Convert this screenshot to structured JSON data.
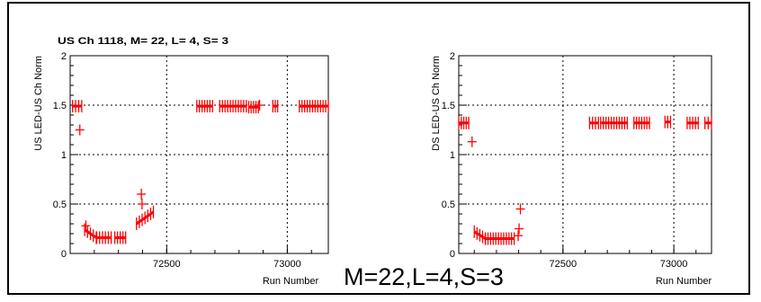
{
  "caption": "M=22,L=4,S=3",
  "colors": {
    "marker": "#ff0000",
    "axis": "#000000",
    "grid": "#000000"
  },
  "chart_data": [
    {
      "type": "scatter",
      "title": "US Ch 1118, M= 22, L= 4, S= 3",
      "xlabel": "Run Number",
      "ylabel": "US LED-US Ch Norm",
      "xlim": [
        72100,
        73170
      ],
      "ylim": [
        0,
        2
      ],
      "xticks": [
        72500,
        73000
      ],
      "xtick_labels": [
        "72500",
        "73000"
      ],
      "yticks": [
        0,
        0.5,
        1,
        1.5,
        2
      ],
      "ytick_labels": [
        "0",
        "0.5",
        "1",
        "1.5",
        "2"
      ],
      "grid": true,
      "marker": "+",
      "clusters": [
        {
          "x": [
            72110,
            72148
          ],
          "y": [
            1.49,
            1.49
          ]
        },
        {
          "x": [
            72160,
            72208
          ],
          "y": [
            0.24,
            0.16
          ]
        },
        {
          "x": [
            72210,
            72270
          ],
          "y": [
            0.16,
            0.16
          ]
        },
        {
          "x": [
            72285,
            72330
          ],
          "y": [
            0.16,
            0.16
          ]
        },
        {
          "x": [
            72375,
            72445
          ],
          "y": [
            0.3,
            0.42
          ]
        },
        {
          "x": [
            72625,
            72690
          ],
          "y": [
            1.49,
            1.49
          ]
        },
        {
          "x": [
            72720,
            72830
          ],
          "y": [
            1.49,
            1.49
          ]
        },
        {
          "x": [
            72840,
            72880
          ],
          "y": [
            1.48,
            1.48
          ]
        },
        {
          "x": [
            72940,
            72960
          ],
          "y": [
            1.49,
            1.49
          ]
        },
        {
          "x": [
            73050,
            73170
          ],
          "y": [
            1.49,
            1.49
          ]
        }
      ],
      "points": [
        {
          "x": 72140,
          "y": 1.25
        },
        {
          "x": 72165,
          "y": 0.28
        },
        {
          "x": 72395,
          "y": 0.6
        },
        {
          "x": 72398,
          "y": 0.5
        },
        {
          "x": 72885,
          "y": 1.5
        }
      ]
    },
    {
      "type": "scatter",
      "title": "",
      "xlabel": "Run Number",
      "ylabel": "DS LED-US Ch Norm",
      "xlim": [
        72030,
        73170
      ],
      "ylim": [
        0,
        2
      ],
      "xticks": [
        72500,
        73000
      ],
      "xtick_labels": [
        "72500",
        "73000"
      ],
      "yticks": [
        0,
        0.5,
        1,
        1.5,
        2
      ],
      "ytick_labels": [
        "0",
        "0.5",
        "1",
        "1.5",
        "2"
      ],
      "grid": true,
      "marker": "+",
      "clusters": [
        {
          "x": [
            72030,
            72075
          ],
          "y": [
            1.32,
            1.32
          ]
        },
        {
          "x": [
            72100,
            72150
          ],
          "y": [
            0.22,
            0.15
          ]
        },
        {
          "x": [
            72150,
            72280
          ],
          "y": [
            0.15,
            0.15
          ]
        },
        {
          "x": [
            72620,
            72660
          ],
          "y": [
            1.32,
            1.32
          ]
        },
        {
          "x": [
            72670,
            72790
          ],
          "y": [
            1.32,
            1.32
          ]
        },
        {
          "x": [
            72820,
            72890
          ],
          "y": [
            1.32,
            1.32
          ]
        },
        {
          "x": [
            72960,
            72985
          ],
          "y": [
            1.33,
            1.33
          ]
        },
        {
          "x": [
            73060,
            73110
          ],
          "y": [
            1.32,
            1.32
          ]
        },
        {
          "x": [
            73140,
            73170
          ],
          "y": [
            1.32,
            1.32
          ]
        }
      ],
      "points": [
        {
          "x": 72090,
          "y": 1.13
        },
        {
          "x": 72308,
          "y": 0.45
        },
        {
          "x": 72302,
          "y": 0.25
        },
        {
          "x": 72298,
          "y": 0.18
        }
      ]
    }
  ]
}
